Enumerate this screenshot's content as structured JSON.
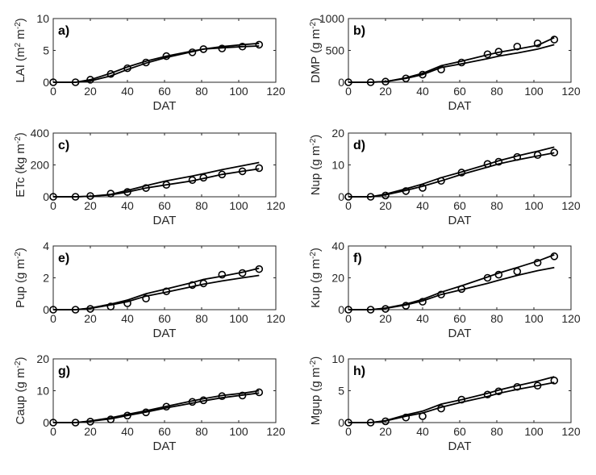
{
  "chart_data": [
    {
      "panel_label": "a)",
      "type": "line",
      "ylabel": "LAI (m",
      "ylabel_unit_exp": "2",
      "ylabel_unit_mid": " m",
      "ylabel_unit_exp2": "-2",
      "ylabel_unit_end": ")",
      "xlabel": "DAT",
      "xlim": [
        0,
        120
      ],
      "ylim": [
        0,
        10
      ],
      "xticks": [
        0,
        20,
        40,
        60,
        80,
        100,
        120
      ],
      "yticks": [
        0,
        5,
        10
      ],
      "grid": false,
      "series": [
        {
          "x": [
            0,
            12,
            20,
            31,
            40,
            50,
            61,
            75,
            81,
            91,
            102,
            111
          ],
          "y": [
            0,
            0,
            0.2,
            1.0,
            2.0,
            3.0,
            3.9,
            4.8,
            5.2,
            5.6,
            5.9,
            6.1
          ]
        },
        {
          "x": [
            0,
            12,
            20,
            31,
            40,
            50,
            61,
            75,
            81,
            91,
            102,
            111
          ],
          "y": [
            0,
            0,
            0.4,
            1.4,
            2.4,
            3.3,
            4.1,
            4.9,
            5.2,
            5.4,
            5.6,
            5.7
          ]
        },
        {
          "x": [
            0,
            12,
            20,
            31,
            40,
            50,
            61,
            75,
            81,
            91,
            102,
            111
          ],
          "y": [
            0,
            0,
            0.4,
            1.3,
            2.2,
            3.1,
            4.1,
            4.7,
            5.2,
            5.3,
            5.6,
            5.9
          ]
        }
      ]
    },
    {
      "panel_label": "b)",
      "type": "line",
      "ylabel": "DMP (g m",
      "ylabel_unit_exp": "-2",
      "ylabel_unit_end": ")",
      "xlabel": "DAT",
      "xlim": [
        0,
        120
      ],
      "ylim": [
        0,
        1000
      ],
      "xticks": [
        0,
        20,
        40,
        60,
        80,
        100,
        120
      ],
      "yticks": [
        0,
        500,
        1000
      ],
      "grid": false,
      "series": [
        {
          "x": [
            0,
            12,
            20,
            31,
            40,
            50,
            61,
            75,
            81,
            91,
            102,
            111
          ],
          "y": [
            0,
            0,
            10,
            70,
            140,
            260,
            330,
            430,
            470,
            520,
            580,
            700
          ]
        },
        {
          "x": [
            0,
            12,
            20,
            31,
            40,
            50,
            61,
            75,
            81,
            91,
            102,
            111
          ],
          "y": [
            0,
            0,
            10,
            60,
            120,
            230,
            290,
            370,
            410,
            460,
            520,
            590
          ]
        },
        {
          "x": [
            0,
            12,
            20,
            31,
            40,
            50,
            61,
            75,
            81,
            91,
            102,
            111
          ],
          "y": [
            0,
            0,
            10,
            60,
            120,
            200,
            310,
            440,
            480,
            560,
            610,
            670
          ]
        }
      ]
    },
    {
      "panel_label": "c)",
      "type": "line",
      "ylabel": "ETc (kg m",
      "ylabel_unit_exp": "-2",
      "ylabel_unit_end": ")",
      "xlabel": "DAT",
      "xlim": [
        0,
        120
      ],
      "ylim": [
        0,
        400
      ],
      "xticks": [
        0,
        20,
        40,
        60,
        80,
        100,
        120
      ],
      "yticks": [
        0,
        200,
        400
      ],
      "grid": false,
      "series": [
        {
          "x": [
            0,
            12,
            20,
            31,
            40,
            50,
            61,
            75,
            81,
            91,
            102,
            111
          ],
          "y": [
            0,
            0,
            3,
            15,
            40,
            70,
            100,
            130,
            145,
            170,
            195,
            215
          ]
        },
        {
          "x": [
            0,
            12,
            20,
            31,
            40,
            50,
            61,
            75,
            81,
            91,
            102,
            111
          ],
          "y": [
            0,
            0,
            3,
            12,
            30,
            55,
            75,
            100,
            115,
            140,
            160,
            175
          ]
        },
        {
          "x": [
            0,
            12,
            20,
            31,
            40,
            50,
            61,
            75,
            81,
            91,
            102,
            111
          ],
          "y": [
            0,
            0,
            5,
            20,
            30,
            55,
            75,
            105,
            120,
            140,
            160,
            180
          ]
        }
      ]
    },
    {
      "panel_label": "d)",
      "type": "line",
      "ylabel": "Nup (g m",
      "ylabel_unit_exp": "-2",
      "ylabel_unit_end": ")",
      "xlabel": "DAT",
      "xlim": [
        0,
        120
      ],
      "ylim": [
        0,
        20
      ],
      "xticks": [
        0,
        20,
        40,
        60,
        80,
        100,
        120
      ],
      "yticks": [
        0,
        10,
        20
      ],
      "grid": false,
      "series": [
        {
          "x": [
            0,
            12,
            20,
            31,
            40,
            50,
            61,
            75,
            81,
            91,
            102,
            111
          ],
          "y": [
            0,
            0,
            0.8,
            2.5,
            4.0,
            6.0,
            7.8,
            10.2,
            11.3,
            12.8,
            14.3,
            15.6
          ]
        },
        {
          "x": [
            0,
            12,
            20,
            31,
            40,
            50,
            61,
            75,
            81,
            91,
            102,
            111
          ],
          "y": [
            0,
            0,
            0.6,
            2.0,
            3.3,
            5.0,
            7.0,
            9.3,
            10.3,
            11.6,
            12.8,
            13.8
          ]
        },
        {
          "x": [
            0,
            12,
            20,
            31,
            40,
            50,
            61,
            75,
            81,
            91,
            102,
            111
          ],
          "y": [
            0,
            0,
            0.4,
            1.8,
            2.8,
            5.0,
            7.6,
            10.3,
            11.0,
            12.5,
            13.1,
            13.9
          ]
        }
      ]
    },
    {
      "panel_label": "e)",
      "type": "line",
      "ylabel": "Pup (g m",
      "ylabel_unit_exp": "-2",
      "ylabel_unit_end": ")",
      "xlabel": "DAT",
      "xlim": [
        0,
        120
      ],
      "ylim": [
        0,
        4
      ],
      "xticks": [
        0,
        20,
        40,
        60,
        80,
        100,
        120
      ],
      "yticks": [
        0,
        2,
        4
      ],
      "grid": false,
      "series": [
        {
          "x": [
            0,
            12,
            20,
            31,
            40,
            50,
            61,
            75,
            81,
            91,
            102,
            111
          ],
          "y": [
            0,
            0,
            0.1,
            0.35,
            0.6,
            1.0,
            1.3,
            1.7,
            1.9,
            2.1,
            2.35,
            2.6
          ]
        },
        {
          "x": [
            0,
            12,
            20,
            31,
            40,
            50,
            61,
            75,
            81,
            91,
            102,
            111
          ],
          "y": [
            0,
            0,
            0.08,
            0.3,
            0.5,
            0.85,
            1.1,
            1.45,
            1.6,
            1.8,
            2.0,
            2.15
          ]
        },
        {
          "x": [
            0,
            12,
            20,
            31,
            40,
            50,
            61,
            75,
            81,
            91,
            102,
            111
          ],
          "y": [
            0,
            0,
            0.05,
            0.2,
            0.4,
            0.7,
            1.15,
            1.55,
            1.65,
            2.2,
            2.3,
            2.55
          ]
        }
      ]
    },
    {
      "panel_label": "f)",
      "type": "line",
      "ylabel": "Kup (g m",
      "ylabel_unit_exp": "-2",
      "ylabel_unit_end": ")",
      "xlabel": "DAT",
      "xlim": [
        0,
        120
      ],
      "ylim": [
        0,
        40
      ],
      "xticks": [
        0,
        20,
        40,
        60,
        80,
        100,
        120
      ],
      "yticks": [
        0,
        20,
        40
      ],
      "grid": false,
      "series": [
        {
          "x": [
            0,
            12,
            20,
            31,
            40,
            50,
            61,
            75,
            81,
            91,
            102,
            111
          ],
          "y": [
            0,
            0,
            1,
            3.5,
            6.5,
            11,
            15,
            20.5,
            23,
            26.5,
            30.5,
            34.5
          ]
        },
        {
          "x": [
            0,
            12,
            20,
            31,
            40,
            50,
            61,
            75,
            81,
            91,
            102,
            111
          ],
          "y": [
            0,
            0,
            0.8,
            3,
            5.5,
            9.5,
            12.5,
            16.5,
            18.5,
            21.5,
            24.5,
            26.5
          ]
        },
        {
          "x": [
            0,
            12,
            20,
            31,
            40,
            50,
            61,
            75,
            81,
            91,
            102,
            111
          ],
          "y": [
            0,
            0,
            0.5,
            2.5,
            5,
            9.5,
            13,
            20,
            22,
            24,
            29.5,
            33.5
          ]
        }
      ]
    },
    {
      "panel_label": "g)",
      "type": "line",
      "ylabel": "Caup (g m",
      "ylabel_unit_exp": "-2",
      "ylabel_unit_end": ")",
      "xlabel": "DAT",
      "xlim": [
        0,
        120
      ],
      "ylim": [
        0,
        20
      ],
      "xticks": [
        0,
        20,
        40,
        60,
        80,
        100,
        120
      ],
      "yticks": [
        0,
        10,
        20
      ],
      "grid": false,
      "series": [
        {
          "x": [
            0,
            12,
            20,
            31,
            40,
            50,
            61,
            75,
            81,
            91,
            102,
            111
          ],
          "y": [
            0,
            0,
            0.5,
            1.5,
            2.6,
            3.7,
            5.1,
            6.8,
            7.5,
            8.5,
            9.2,
            10.0
          ]
        },
        {
          "x": [
            0,
            12,
            20,
            31,
            40,
            50,
            61,
            75,
            81,
            91,
            102,
            111
          ],
          "y": [
            0,
            0,
            0.4,
            1.2,
            2.2,
            3.3,
            4.6,
            6.1,
            6.8,
            7.8,
            8.6,
            9.3
          ]
        },
        {
          "x": [
            0,
            12,
            20,
            31,
            40,
            50,
            61,
            75,
            81,
            91,
            102,
            111
          ],
          "y": [
            0,
            0,
            0.3,
            1.0,
            2.2,
            3.2,
            5.0,
            6.5,
            7.0,
            8.3,
            8.5,
            9.5
          ]
        }
      ]
    },
    {
      "panel_label": "h)",
      "type": "line",
      "ylabel": "Mgup (g m",
      "ylabel_unit_exp": "-2",
      "ylabel_unit_end": ")",
      "xlabel": "DAT",
      "xlim": [
        0,
        120
      ],
      "ylim": [
        0,
        10
      ],
      "xticks": [
        0,
        20,
        40,
        60,
        80,
        100,
        120
      ],
      "yticks": [
        0,
        5,
        10
      ],
      "grid": false,
      "series": [
        {
          "x": [
            0,
            12,
            20,
            31,
            40,
            50,
            61,
            75,
            81,
            91,
            102,
            111
          ],
          "y": [
            0,
            0,
            0.3,
            1.2,
            1.8,
            2.9,
            3.6,
            4.6,
            5.1,
            5.8,
            6.5,
            7.2
          ]
        },
        {
          "x": [
            0,
            12,
            20,
            31,
            40,
            50,
            61,
            75,
            81,
            91,
            102,
            111
          ],
          "y": [
            0,
            0,
            0.25,
            1.0,
            1.5,
            2.4,
            3.2,
            4.1,
            4.6,
            5.2,
            5.8,
            6.3
          ]
        },
        {
          "x": [
            0,
            12,
            20,
            31,
            40,
            50,
            61,
            75,
            81,
            91,
            102,
            111
          ],
          "y": [
            0,
            0,
            0.2,
            0.8,
            1.0,
            2.2,
            3.6,
            4.4,
            4.9,
            5.6,
            5.8,
            6.6
          ]
        }
      ]
    }
  ]
}
